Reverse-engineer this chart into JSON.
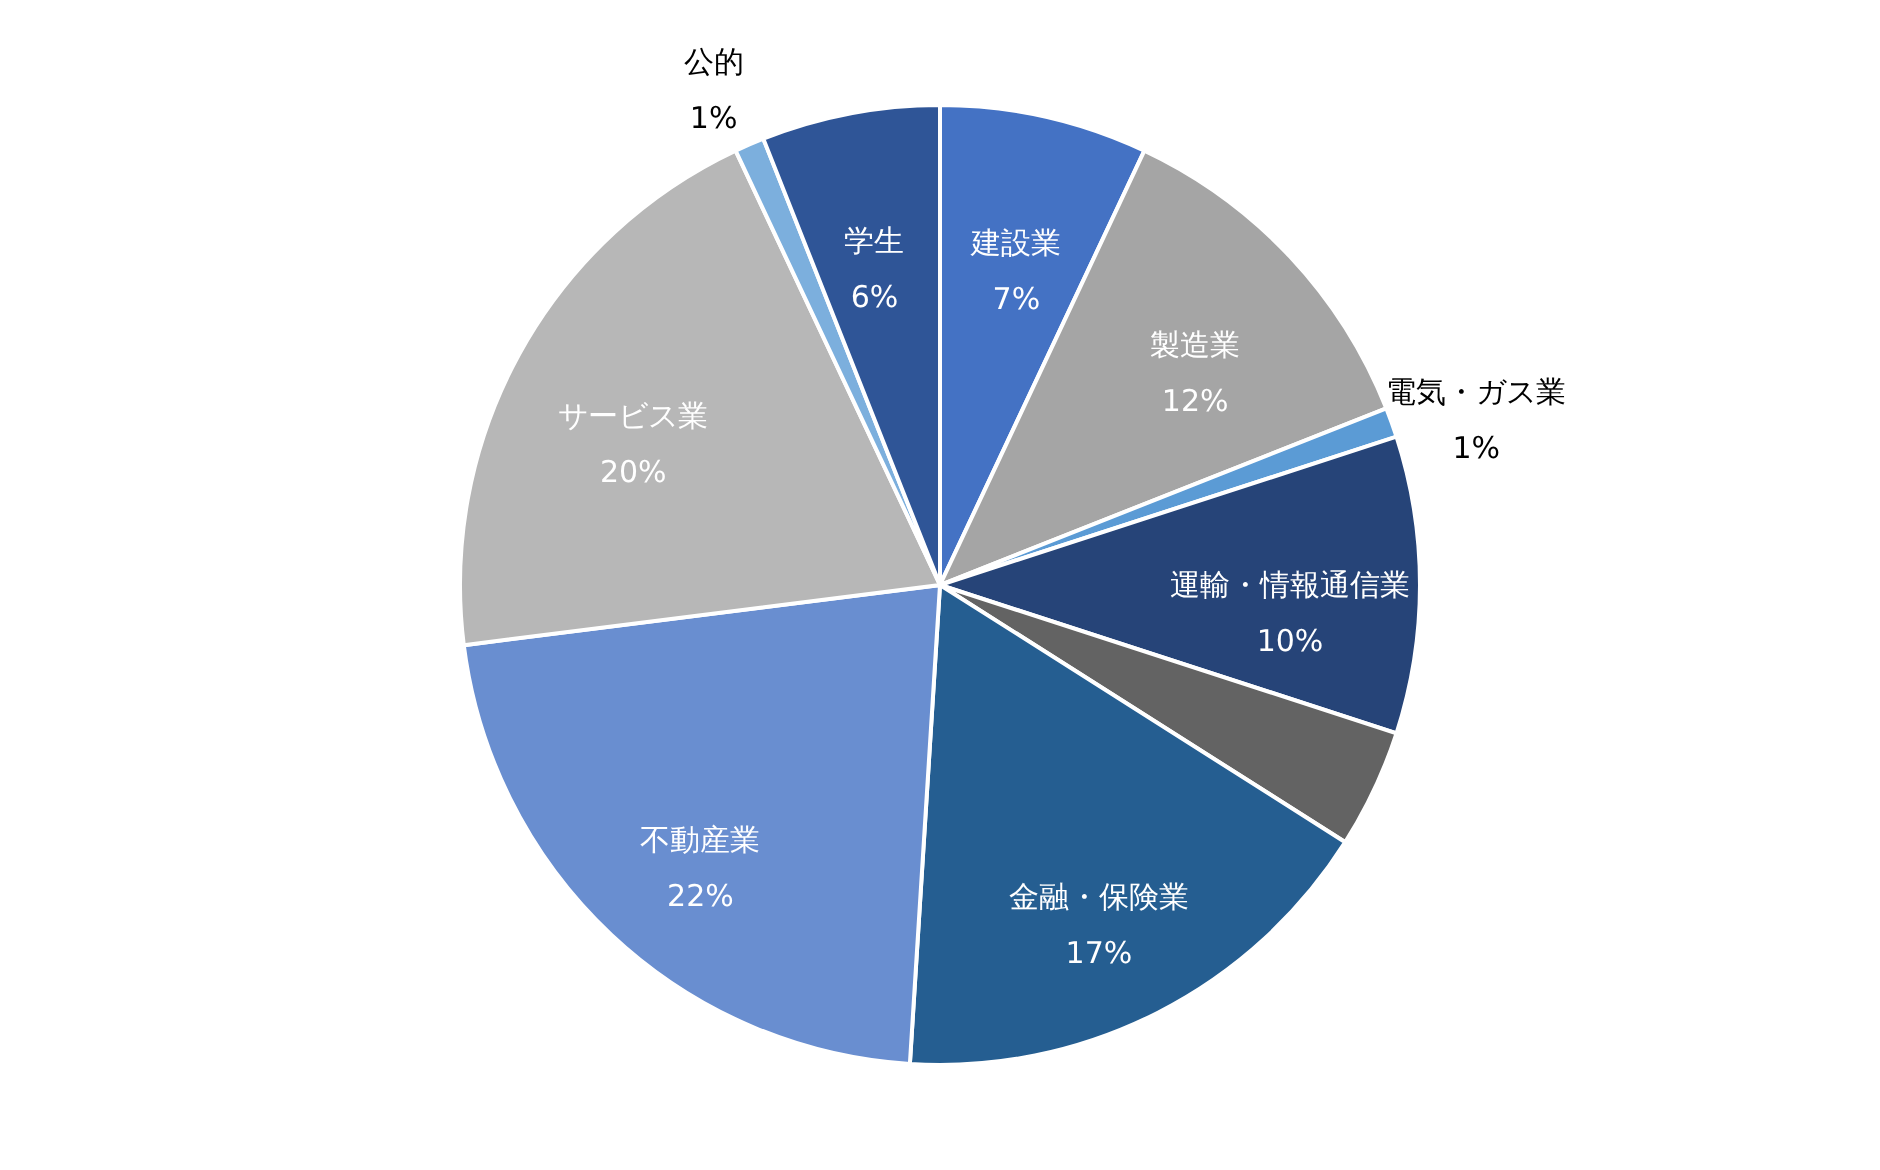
{
  "chart_data": {
    "type": "pie",
    "categories": [
      "建設業",
      "製造業",
      "電気・ガス業",
      "運輸・情報通信業",
      null,
      "金融・保険業",
      "不動産業",
      "サービス業",
      "公的",
      "学生"
    ],
    "values": [
      7,
      12,
      1,
      10,
      4,
      17,
      22,
      20,
      1,
      6
    ],
    "value_labels": [
      "7%",
      "12%",
      "1%",
      "10%",
      null,
      "17%",
      "22%",
      "20%",
      "1%",
      "6%"
    ],
    "colors": [
      "#4472c4",
      "#a5a5a5",
      "#5b9bd5",
      "#264478",
      "#636363",
      "#255e91",
      "#698ed0",
      "#b7b7b7",
      "#7cafdd",
      "#2f5597"
    ]
  }
}
